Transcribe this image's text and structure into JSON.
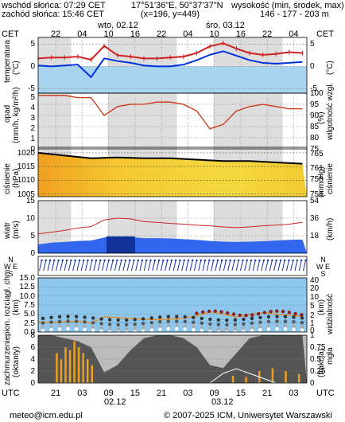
{
  "header": {
    "sunrise": "wschód słońca: 07:29 CET",
    "sunset": "zachód słońca: 15:46 CET",
    "coords": "17°51'36\"E, 50°37'37\"N",
    "grid": "(x=196, y=449)",
    "height_label": "wysokość (min, środek, max)",
    "height_values": "146 - 177 - 203 m"
  },
  "timezone_label": "CET",
  "utc_label": "UTC",
  "day_labels": [
    "wto, 02.12",
    "śro, 03.12"
  ],
  "cet_hours": [
    "22",
    "04",
    "10",
    "16",
    "22",
    "04",
    "10",
    "16",
    "22",
    "04"
  ],
  "utc_hours": [
    "21",
    "03",
    "09",
    "15",
    "21",
    "03",
    "09",
    "15",
    "21",
    "03"
  ],
  "bottom_dates": [
    "02.12",
    "03.12"
  ],
  "panel_labels": {
    "temperature_left": "temperatura",
    "temperature_unit": "(°C)",
    "temperature_right": "(°C)",
    "precip_left": "opad",
    "precip_unit": "(mm/h, kg/m²/h)",
    "humidity_right": "wilgotność wzgl.",
    "humidity_unit": "(%)",
    "pressure_left": "ciśnienie",
    "pressure_unit": "(hPa)",
    "pressure_right": "ciśnienie",
    "pressure_right_unit": "(mm Hg)",
    "wind_left": "wiatr",
    "wind_unit": "(m/s)",
    "wind_right_unit": "(km/h)",
    "vis_left": "pion. rozciągł. chm.",
    "vis_unit": "(km)",
    "vis_right": "widzialność",
    "vis_right_unit": "(km)",
    "cloud_left": "zachmurzenie",
    "cloud_unit": "(oktanty)",
    "cloud_right": "mgła",
    "cloud_right_unit": "(frakcja)"
  },
  "footer": {
    "email": "meteo@icm.edu.pl",
    "copyright": "© 2007-2025 ICM, Uniwersytet Warszawski"
  },
  "colors": {
    "temp_line": "#cc2222",
    "dew_line": "#0033dd",
    "humidity_line": "#cc3311",
    "pressure_line": "#000000",
    "wind_band": "#3366ee",
    "gust_line": "#cc2222",
    "night_bg": "#dddddd",
    "cloud_fill": "#555555",
    "fog_line": "#ffffff"
  },
  "chart_data": [
    {
      "type": "line",
      "name": "temperatura",
      "x_hours": [
        0,
        3,
        6,
        9,
        12,
        15,
        18,
        21,
        24,
        27,
        30,
        33,
        36,
        39,
        42,
        45,
        48,
        51,
        54,
        57,
        60
      ],
      "series": [
        {
          "values": [
            1.8,
            2.0,
            2.0,
            2.2,
            1.5,
            4.6,
            2.5,
            2.2,
            1.8,
            1.8,
            2.0,
            2.2,
            3.0,
            4.5,
            5.2,
            4.0,
            3.0,
            2.6,
            2.8,
            3.2,
            3.0
          ]
        },
        {
          "values": [
            0.2,
            0.0,
            0.2,
            0.4,
            -2.4,
            1.8,
            1.2,
            0.8,
            0.2,
            0.0,
            0.0,
            0.4,
            1.4,
            2.6,
            3.4,
            2.4,
            1.4,
            0.8,
            0.6,
            0.8,
            1.0
          ]
        }
      ],
      "y_ticks_left": [
        -5,
        0,
        5
      ],
      "y_ticks_right": [
        -5,
        0,
        5
      ],
      "ylim": [
        -6,
        6.5
      ]
    },
    {
      "type": "line",
      "name": "opad / wilgotność",
      "y_ticks_left": [
        0,
        1,
        2,
        3,
        4,
        5
      ],
      "y_ticks_right": [
        75,
        80,
        85,
        90,
        95,
        100
      ],
      "x_hours": [
        0,
        3,
        6,
        9,
        12,
        15,
        18,
        21,
        24,
        27,
        30,
        33,
        36,
        39,
        42,
        45,
        48,
        51,
        54,
        57,
        60
      ],
      "humidity": [
        99,
        99,
        99,
        98,
        98,
        90,
        94,
        95,
        95,
        96,
        96,
        95,
        92,
        84,
        86,
        92,
        94,
        95,
        94,
        93,
        93
      ],
      "ylim": [
        75,
        100
      ]
    },
    {
      "type": "line",
      "name": "ciśnienie",
      "y_ticks_left": [
        1005,
        1010,
        1015,
        1020
      ],
      "y_ticks_right": [
        754,
        758,
        761,
        765
      ],
      "x_hours": [
        0,
        6,
        12,
        18,
        24,
        30,
        36,
        42,
        48,
        54,
        60
      ],
      "values": [
        1020,
        1019,
        1018,
        1018.3,
        1018,
        1018,
        1017.5,
        1017,
        1017,
        1016.5,
        1016
      ],
      "ylim": [
        1004,
        1022
      ]
    },
    {
      "type": "area",
      "name": "wiatr",
      "y_ticks_left": [
        0,
        5,
        10,
        15
      ],
      "y_ticks_right": [
        18,
        36,
        54
      ],
      "x_hours": [
        0,
        3,
        6,
        9,
        12,
        15,
        18,
        21,
        24,
        27,
        30,
        33,
        36,
        39,
        42,
        45,
        48,
        51,
        54,
        57,
        60
      ],
      "wind": [
        2.5,
        3.0,
        3.2,
        3.5,
        3.6,
        4.5,
        4.8,
        4.6,
        4.3,
        4.3,
        4.2,
        4.0,
        3.8,
        3.5,
        3.3,
        3.2,
        3.3,
        3.4,
        3.6,
        3.8,
        3.9
      ],
      "gust": [
        5.5,
        6.0,
        6.5,
        7.2,
        7.6,
        9.5,
        10.0,
        9.8,
        9.0,
        8.8,
        8.5,
        8.3,
        8.0,
        7.8,
        7.5,
        7.3,
        7.5,
        7.8,
        8.0,
        8.3,
        8.8
      ],
      "ylim": [
        0,
        15
      ]
    },
    {
      "type": "scatter",
      "name": "widzialność",
      "y_ticks_left": [
        "0.0",
        "2.5",
        "5.0",
        "7.5",
        "10.0",
        "12.5",
        "15.0"
      ],
      "y_ticks_right": [
        0,
        1,
        2,
        5,
        10,
        20,
        40
      ],
      "ylim": [
        0,
        15
      ]
    },
    {
      "type": "area",
      "name": "zachmurzenie",
      "y_ticks_left": [
        0,
        2,
        4,
        6,
        8
      ],
      "y_ticks_right": [
        0,
        0.25,
        0.5,
        0.75,
        1
      ],
      "x_hours": [
        0,
        3,
        6,
        9,
        12,
        15,
        18,
        21,
        24,
        27,
        30,
        33,
        36,
        39,
        42,
        45,
        48,
        51,
        54,
        57,
        60
      ],
      "cloud": [
        8,
        8,
        7.5,
        7,
        6,
        1.8,
        3,
        5.5,
        7.5,
        8,
        8,
        7.5,
        6,
        3,
        2.5,
        5,
        7.5,
        8,
        8,
        8,
        8
      ],
      "ylim": [
        0,
        8
      ]
    }
  ]
}
